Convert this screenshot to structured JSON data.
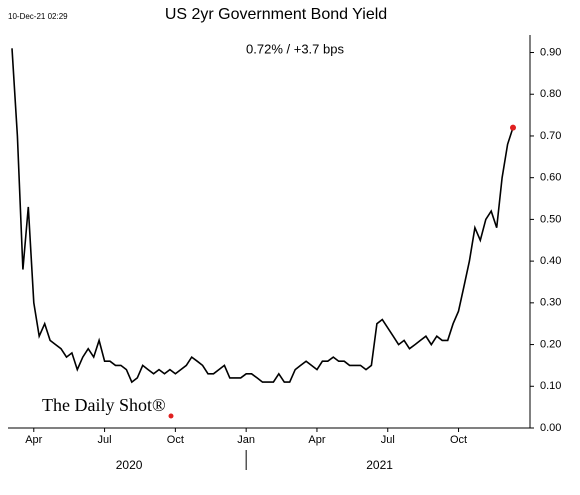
{
  "timestamp": "10-Dec-21 02:29",
  "logo": "The Daily Shot®",
  "chart_data": {
    "type": "line",
    "title": "US 2yr Government Bond Yield",
    "subtitle": "0.72%  /  +3.7 bps",
    "categories": [
      null,
      null,
      null,
      null,
      "Apr",
      null,
      null,
      null,
      null,
      null,
      null,
      null,
      null,
      null,
      null,
      null,
      null,
      "Jul",
      null,
      null,
      null,
      null,
      null,
      null,
      null,
      null,
      null,
      null,
      null,
      null,
      "Oct",
      null,
      null,
      null,
      null,
      null,
      null,
      null,
      null,
      null,
      null,
      null,
      null,
      "Jan",
      null,
      null,
      null,
      null,
      null,
      null,
      null,
      null,
      null,
      null,
      null,
      null,
      "Apr",
      null,
      null,
      null,
      null,
      null,
      null,
      null,
      null,
      null,
      null,
      null,
      null,
      "Jul",
      null,
      null,
      null,
      null,
      null,
      null,
      null,
      null,
      null,
      null,
      null,
      null,
      "Oct",
      null,
      null,
      null,
      null,
      null,
      null,
      null,
      null,
      null,
      null
    ],
    "year_labels": [
      "2020",
      "2021"
    ],
    "values": [
      0.91,
      0.7,
      0.38,
      0.53,
      0.3,
      0.22,
      0.25,
      0.21,
      0.2,
      0.19,
      0.17,
      0.18,
      0.14,
      0.17,
      0.19,
      0.17,
      0.21,
      0.16,
      0.16,
      0.15,
      0.15,
      0.14,
      0.11,
      0.12,
      0.15,
      0.14,
      0.13,
      0.14,
      0.13,
      0.14,
      0.13,
      0.14,
      0.15,
      0.17,
      0.16,
      0.15,
      0.13,
      0.13,
      0.14,
      0.15,
      0.12,
      0.12,
      0.12,
      0.13,
      0.13,
      0.12,
      0.11,
      0.11,
      0.11,
      0.13,
      0.11,
      0.11,
      0.14,
      0.15,
      0.16,
      0.15,
      0.14,
      0.16,
      0.16,
      0.17,
      0.16,
      0.16,
      0.15,
      0.15,
      0.15,
      0.14,
      0.15,
      0.25,
      0.26,
      0.24,
      0.22,
      0.2,
      0.21,
      0.19,
      0.2,
      0.21,
      0.22,
      0.2,
      0.22,
      0.21,
      0.21,
      0.25,
      0.28,
      0.34,
      0.4,
      0.48,
      0.45,
      0.5,
      0.52,
      0.48,
      0.6,
      0.68,
      0.72
    ],
    "color": "#000000",
    "last_point_color": "#e02020",
    "ylim": [
      0,
      0.93
    ],
    "yticks": [
      {
        "value": 0,
        "label": "0.00"
      },
      {
        "value": 0.1,
        "label": "0.10"
      },
      {
        "value": 0.2,
        "label": "0.20"
      },
      {
        "value": 0.3,
        "label": "0.30"
      },
      {
        "value": 0.4,
        "label": "0.40"
      },
      {
        "value": 0.5,
        "label": "0.50"
      },
      {
        "value": 0.6,
        "label": "0.60"
      },
      {
        "value": 0.7,
        "label": "0.70"
      },
      {
        "value": 0.8,
        "label": "0.80"
      },
      {
        "value": 0.9,
        "label": "0.90"
      }
    ]
  }
}
